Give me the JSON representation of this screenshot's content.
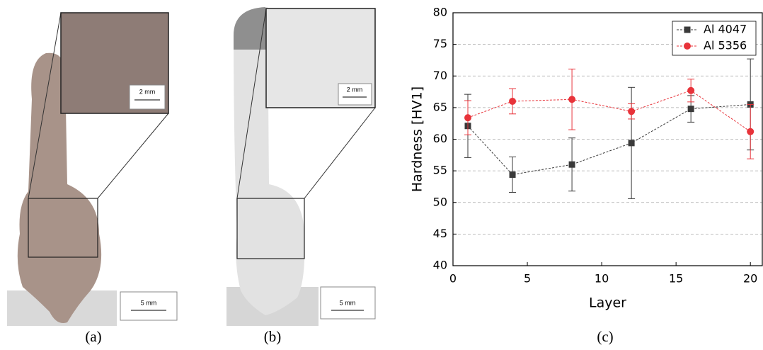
{
  "panels": [
    {
      "label": "(a)",
      "inset_scale": "2 mm",
      "scale": "5 mm"
    },
    {
      "label": "(b)",
      "inset_scale": "2 mm",
      "scale": "5 mm"
    },
    {
      "label": "(c)"
    }
  ],
  "chart_data": {
    "type": "line",
    "x_label": "Layer",
    "y_label": "Hardness [HV1]",
    "x": [
      1,
      4,
      8,
      12,
      16,
      20
    ],
    "series": [
      {
        "name": "Al 4047",
        "color": "#3a3a3a",
        "marker": "square",
        "values": [
          62.1,
          54.4,
          56.0,
          59.4,
          64.8,
          65.5
        ],
        "errors": [
          5.0,
          2.8,
          4.2,
          8.8,
          2.1,
          7.2
        ]
      },
      {
        "name": "Al 5356",
        "color": "#e8333a",
        "marker": "circle",
        "values": [
          63.4,
          66.0,
          66.3,
          64.4,
          67.7,
          61.2
        ],
        "errors": [
          2.7,
          2.0,
          4.8,
          1.2,
          1.8,
          4.3
        ]
      }
    ],
    "xlim": [
      0,
      20.8
    ],
    "xticks": [
      0,
      5,
      10,
      15,
      20
    ],
    "ylim": [
      40,
      80
    ],
    "yticks": [
      40,
      45,
      50,
      55,
      60,
      65,
      70,
      75,
      80
    ],
    "grid": true,
    "legend": "top-right"
  }
}
